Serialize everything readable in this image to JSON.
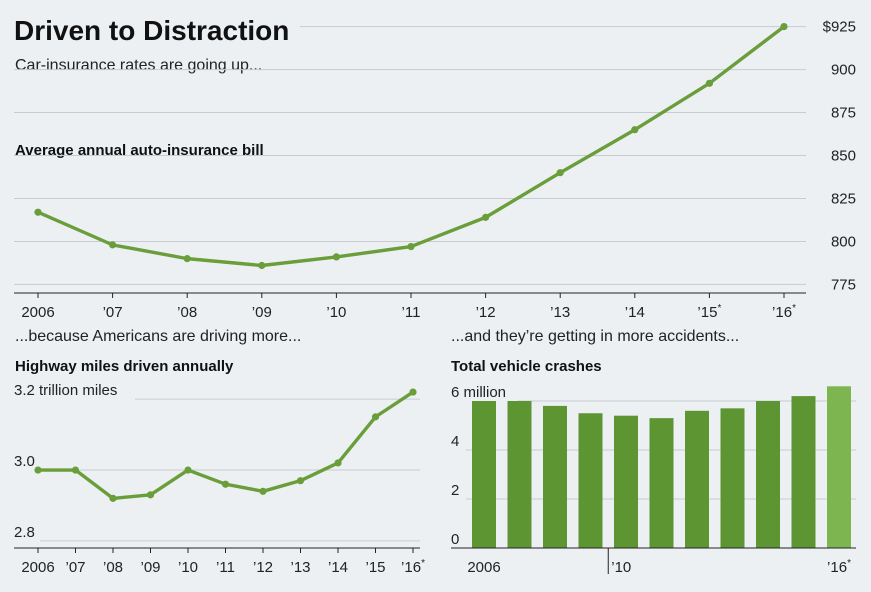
{
  "headline": "Driven to Distraction",
  "dek_top": "Car-insurance rates are going up...",
  "dek_left": "...because Americans are driving more...",
  "dek_right": "...and they’re getting in more accidents...",
  "colors": {
    "line": "#6a9e3a",
    "bar": "#5d9532",
    "bar_last": "#7db650",
    "background": "#ecf0f3"
  },
  "chart_data": [
    {
      "type": "line",
      "title": "Average annual auto-insurance bill",
      "categories": [
        "2006",
        "’07",
        "’08",
        "’09",
        "’10",
        "’11",
        "’12",
        "’13",
        "’14",
        "’15",
        "’16"
      ],
      "asterisks": [
        false,
        false,
        false,
        false,
        false,
        false,
        false,
        false,
        false,
        true,
        true
      ],
      "values": [
        817,
        798,
        790,
        786,
        791,
        797,
        814,
        840,
        865,
        892,
        925
      ],
      "ylim": [
        770,
        930
      ],
      "yticks": [
        775,
        800,
        825,
        850,
        875,
        900,
        925
      ],
      "ytick_labels": [
        "775",
        "800",
        "825",
        "850",
        "875",
        "900",
        "$925"
      ],
      "grid": true
    },
    {
      "type": "line",
      "title": "Highway miles driven annually",
      "categories": [
        "2006",
        "’07",
        "’08",
        "’09",
        "’10",
        "’11",
        "’12",
        "’13",
        "’14",
        "’15",
        "’16"
      ],
      "asterisks": [
        false,
        false,
        false,
        false,
        false,
        false,
        false,
        false,
        false,
        false,
        true
      ],
      "values": [
        3.0,
        3.0,
        2.92,
        2.93,
        3.0,
        2.96,
        2.94,
        2.97,
        3.02,
        3.15,
        3.22
      ],
      "ylim": [
        2.78,
        3.24
      ],
      "yticks": [
        2.8,
        3.0,
        3.2
      ],
      "ytick_labels": [
        "2.8",
        "3.0",
        "3.2 trillion miles"
      ],
      "grid": true
    },
    {
      "type": "bar",
      "title": "Total vehicle crashes",
      "categories": [
        "2006",
        "",
        "",
        "",
        "’10",
        "",
        "",
        "",
        "",
        "",
        "’16"
      ],
      "asterisks": [
        false,
        false,
        false,
        false,
        false,
        false,
        false,
        false,
        false,
        false,
        true
      ],
      "values": [
        6.0,
        6.0,
        5.8,
        5.5,
        5.4,
        5.3,
        5.6,
        5.7,
        6.0,
        6.2,
        6.6
      ],
      "ylim": [
        0,
        6.8
      ],
      "yticks": [
        0,
        2,
        4,
        6
      ],
      "ytick_labels": [
        "0",
        "2",
        "4",
        "6 million"
      ],
      "grid": true
    }
  ]
}
